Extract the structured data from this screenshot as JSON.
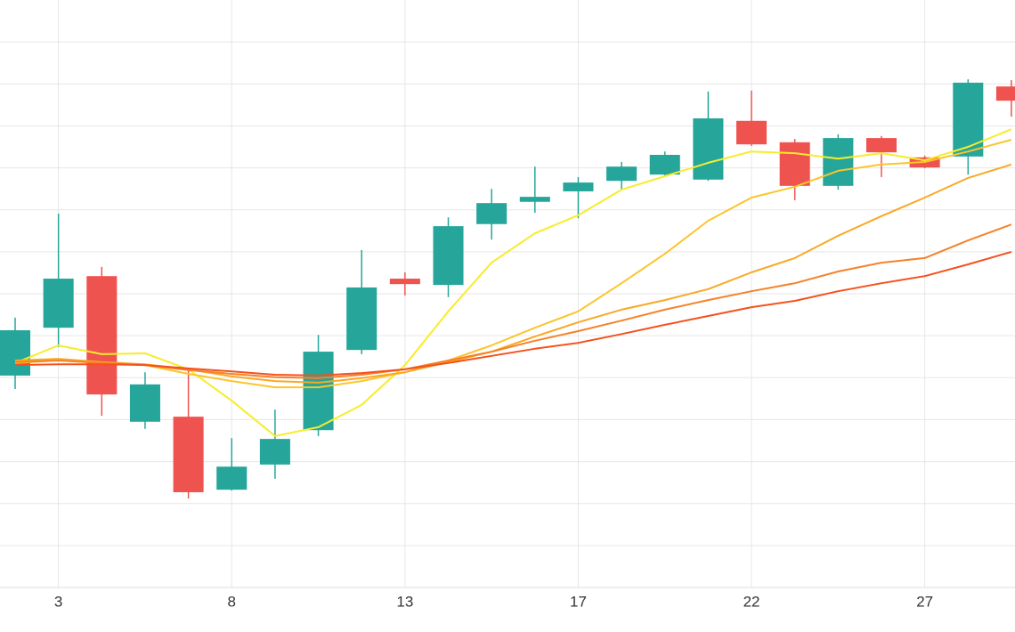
{
  "chart_data": {
    "type": "candlestick",
    "categories": [
      null,
      "3",
      null,
      null,
      null,
      "8",
      null,
      null,
      null,
      "13",
      null,
      null,
      null,
      "17",
      null,
      null,
      null,
      "22",
      null,
      null,
      null,
      "27",
      null,
      null
    ],
    "open": [
      5.05,
      6.19,
      7.42,
      3.95,
      4.07,
      2.33,
      2.93,
      3.75,
      5.66,
      7.36,
      7.21,
      8.66,
      9.19,
      9.44,
      9.69,
      9.84,
      9.72,
      11.12,
      10.61,
      9.57,
      10.71,
      10.25,
      10.27,
      11.94
    ],
    "high": [
      6.43,
      8.91,
      7.64,
      5.13,
      5.2,
      3.56,
      4.24,
      6.02,
      8.04,
      7.51,
      8.82,
      9.5,
      10.03,
      9.78,
      10.14,
      10.39,
      11.82,
      11.84,
      10.69,
      10.8,
      10.76,
      10.29,
      12.11,
      12.09
    ],
    "low": [
      4.73,
      5.73,
      4.09,
      3.78,
      2.12,
      2.31,
      2.59,
      3.61,
      5.56,
      6.96,
      6.92,
      8.29,
      8.93,
      8.8,
      9.48,
      9.8,
      9.69,
      10.52,
      9.23,
      9.48,
      9.78,
      9.99,
      9.84,
      11.22
    ],
    "close": [
      6.13,
      7.36,
      4.6,
      4.84,
      2.27,
      2.88,
      3.54,
      5.62,
      7.15,
      7.23,
      8.61,
      9.16,
      9.31,
      9.65,
      10.03,
      10.31,
      11.18,
      10.56,
      9.57,
      10.71,
      10.37,
      10.01,
      12.03,
      11.6
    ],
    "up_color": "#26a69a",
    "down_color": "#ef5350",
    "series": [
      {
        "color": "#f7ec2a",
        "values": [
          5.35,
          5.77,
          5.56,
          5.58,
          5.2,
          4.45,
          3.61,
          3.82,
          4.35,
          5.3,
          6.58,
          7.74,
          8.44,
          8.87,
          9.48,
          9.8,
          10.12,
          10.39,
          10.35,
          10.22,
          10.35,
          10.18,
          10.5,
          10.92
        ]
      },
      {
        "color": "#fbc52d",
        "values": [
          5.35,
          5.41,
          5.35,
          5.3,
          5.09,
          4.92,
          4.77,
          4.77,
          4.92,
          5.13,
          5.41,
          5.77,
          6.19,
          6.58,
          7.25,
          7.95,
          8.74,
          9.29,
          9.55,
          9.93,
          10.08,
          10.14,
          10.39,
          10.67
        ]
      },
      {
        "color": "#f9a825",
        "values": [
          5.41,
          5.45,
          5.37,
          5.32,
          5.2,
          5.03,
          4.92,
          4.88,
          4.99,
          5.13,
          5.37,
          5.62,
          5.98,
          6.32,
          6.62,
          6.85,
          7.11,
          7.51,
          7.85,
          8.38,
          8.85,
          9.29,
          9.76,
          10.08
        ]
      },
      {
        "color": "#f5822a",
        "values": [
          5.37,
          5.41,
          5.35,
          5.3,
          5.18,
          5.09,
          5.01,
          4.99,
          5.07,
          5.2,
          5.41,
          5.62,
          5.88,
          6.11,
          6.36,
          6.62,
          6.85,
          7.06,
          7.25,
          7.53,
          7.74,
          7.85,
          8.27,
          8.65
        ]
      },
      {
        "color": "#f4511e",
        "values": [
          5.3,
          5.32,
          5.32,
          5.3,
          5.22,
          5.15,
          5.07,
          5.05,
          5.11,
          5.2,
          5.35,
          5.52,
          5.69,
          5.83,
          6.04,
          6.26,
          6.47,
          6.68,
          6.83,
          7.06,
          7.25,
          7.42,
          7.7,
          8.0
        ]
      }
    ],
    "ylim": [
      0,
      14
    ],
    "yticks": [
      1,
      2,
      3,
      4,
      5,
      6,
      7,
      8,
      9,
      10,
      11,
      12,
      13
    ],
    "grid": true
  }
}
